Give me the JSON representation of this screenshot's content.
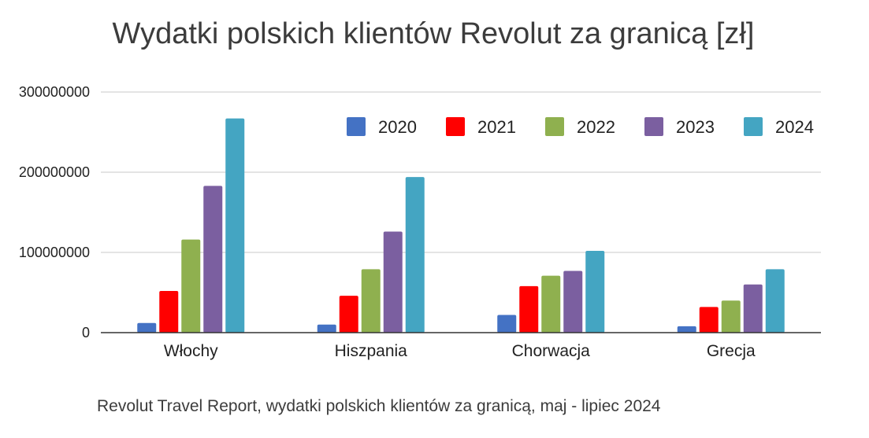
{
  "chart_data": {
    "type": "bar",
    "title": "Wydatki polskich klientów Revolut za granicą [zł]",
    "subtitle": "",
    "xlabel": "",
    "ylabel": "",
    "categories": [
      "Włochy",
      "Hiszpania",
      "Chorwacja",
      "Grecja"
    ],
    "series": [
      {
        "name": "2020",
        "color": "#4472C4",
        "values": [
          12000000,
          10000000,
          22000000,
          8000000
        ]
      },
      {
        "name": "2021",
        "color": "#FF0000",
        "values": [
          52000000,
          46000000,
          58000000,
          32000000
        ]
      },
      {
        "name": "2022",
        "color": "#8FB04F",
        "values": [
          116000000,
          79000000,
          71000000,
          40000000
        ]
      },
      {
        "name": "2023",
        "color": "#7B5FA0",
        "values": [
          183000000,
          126000000,
          77000000,
          60000000
        ]
      },
      {
        "name": "2024",
        "color": "#44A5C2",
        "values": [
          267000000,
          194000000,
          102000000,
          79000000
        ]
      }
    ],
    "ylim": [
      0,
      300000000
    ],
    "yticks": [
      "0",
      "100000000",
      "200000000",
      "300000000"
    ],
    "grid": true,
    "legend_position": "top-right"
  },
  "caption": "Revolut Travel Report, wydatki polskich klientów za granicą, maj - lipiec 2024"
}
